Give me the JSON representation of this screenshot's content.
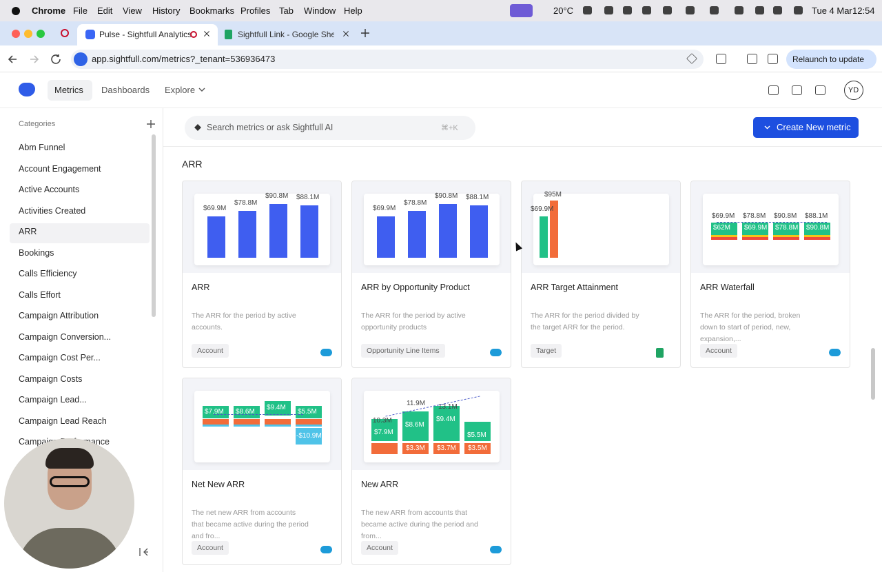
{
  "menubar": {
    "app": "Chrome",
    "items": [
      "File",
      "Edit",
      "View",
      "History",
      "Bookmarks",
      "Profiles",
      "Tab",
      "Window",
      "Help"
    ],
    "temperature": "20°C",
    "date": "Tue 4 Mar",
    "time": "12:54"
  },
  "tabs": [
    "Pulse - Sightfull Analytics",
    "Sightfull Link - Google Sheet"
  ],
  "address": {
    "url": "app.sightfull.com/metrics?_tenant=536936473",
    "relaunch": "Relaunch to update"
  },
  "nav": {
    "items": [
      "Metrics",
      "Dashboards",
      "Explore"
    ],
    "avatar": "YD"
  },
  "sidebar": {
    "header": "Categories",
    "selected": 4,
    "items": [
      "Abm Funnel",
      "Account Engagement",
      "Active Accounts",
      "Activities Created",
      "ARR",
      "Bookings",
      "Calls Efficiency",
      "Calls Effort",
      "Campaign Attribution",
      "Campaign Conversion...",
      "Campaign Cost Per...",
      "Campaign Costs",
      "Campaign Lead...",
      "Campaign Lead Reach",
      "Campaign Performance"
    ]
  },
  "search": {
    "placeholder": "Search metrics or ask Sightfull AI",
    "shortcut": "⌘+K"
  },
  "create_button": "Create New metric",
  "section": "ARR",
  "cards": [
    {
      "title": "ARR",
      "description": "The ARR for the period by active accounts.",
      "tag": "Account",
      "source": "salesforce",
      "thumb": {
        "kind": "bars",
        "values": [
          69.9,
          78.8,
          90.8,
          88.1
        ],
        "value_labels": [
          "$69.9M",
          "$78.8M",
          "$90.8M",
          "$88.1M"
        ]
      }
    },
    {
      "title": "ARR by Opportunity Product",
      "description": "The ARR for the period by active opportunity products",
      "tag": "Opportunity Line Items",
      "source": "salesforce",
      "thumb": {
        "kind": "bars",
        "values": [
          69.9,
          78.8,
          90.8,
          88.1
        ],
        "value_labels": [
          "$69.9M",
          "$78.8M",
          "$90.8M",
          "$88.1M"
        ]
      }
    },
    {
      "title": "ARR Target Attainment",
      "description": "The ARR for the period divided by the target ARR for the period.",
      "tag": "Target",
      "source": "sheets",
      "thumb": {
        "kind": "target",
        "labels": [
          "$69.9M",
          "$95M"
        ]
      }
    },
    {
      "title": "ARR Waterfall",
      "description": "The ARR for the period, broken down to start of period, new, expansion,...",
      "tag": "Account",
      "source": "salesforce",
      "thumb": {
        "kind": "waterfall",
        "top": [
          "$69.9M",
          "$78.8M",
          "$90.8M",
          "$88.1M"
        ],
        "inner": [
          "$62M",
          "$69.9M",
          "$78.8M",
          "$90.8M"
        ]
      }
    },
    {
      "title": "Net New ARR",
      "description": "The net new ARR from accounts that became active during the period and fro...",
      "tag": "Account",
      "source": "salesforce",
      "thumb": {
        "kind": "netnew",
        "inner": [
          "$7.9M",
          "$8.6M",
          "$9.4M",
          "$5.5M"
        ],
        "negative": "-$10.9M"
      }
    },
    {
      "title": "New ARR",
      "description": "The new ARR from accounts that became active during the period and from...",
      "tag": "Account",
      "source": "salesforce",
      "thumb": {
        "kind": "newarr",
        "top": [
          "10.3M",
          "11.9M",
          "13.1M"
        ],
        "inner": [
          "$7.9M",
          "$8.6M",
          "$9.4M",
          "$5.5M"
        ],
        "lower": [
          "$3.3M",
          "$3.7M",
          "$3.5M"
        ]
      }
    }
  ]
}
